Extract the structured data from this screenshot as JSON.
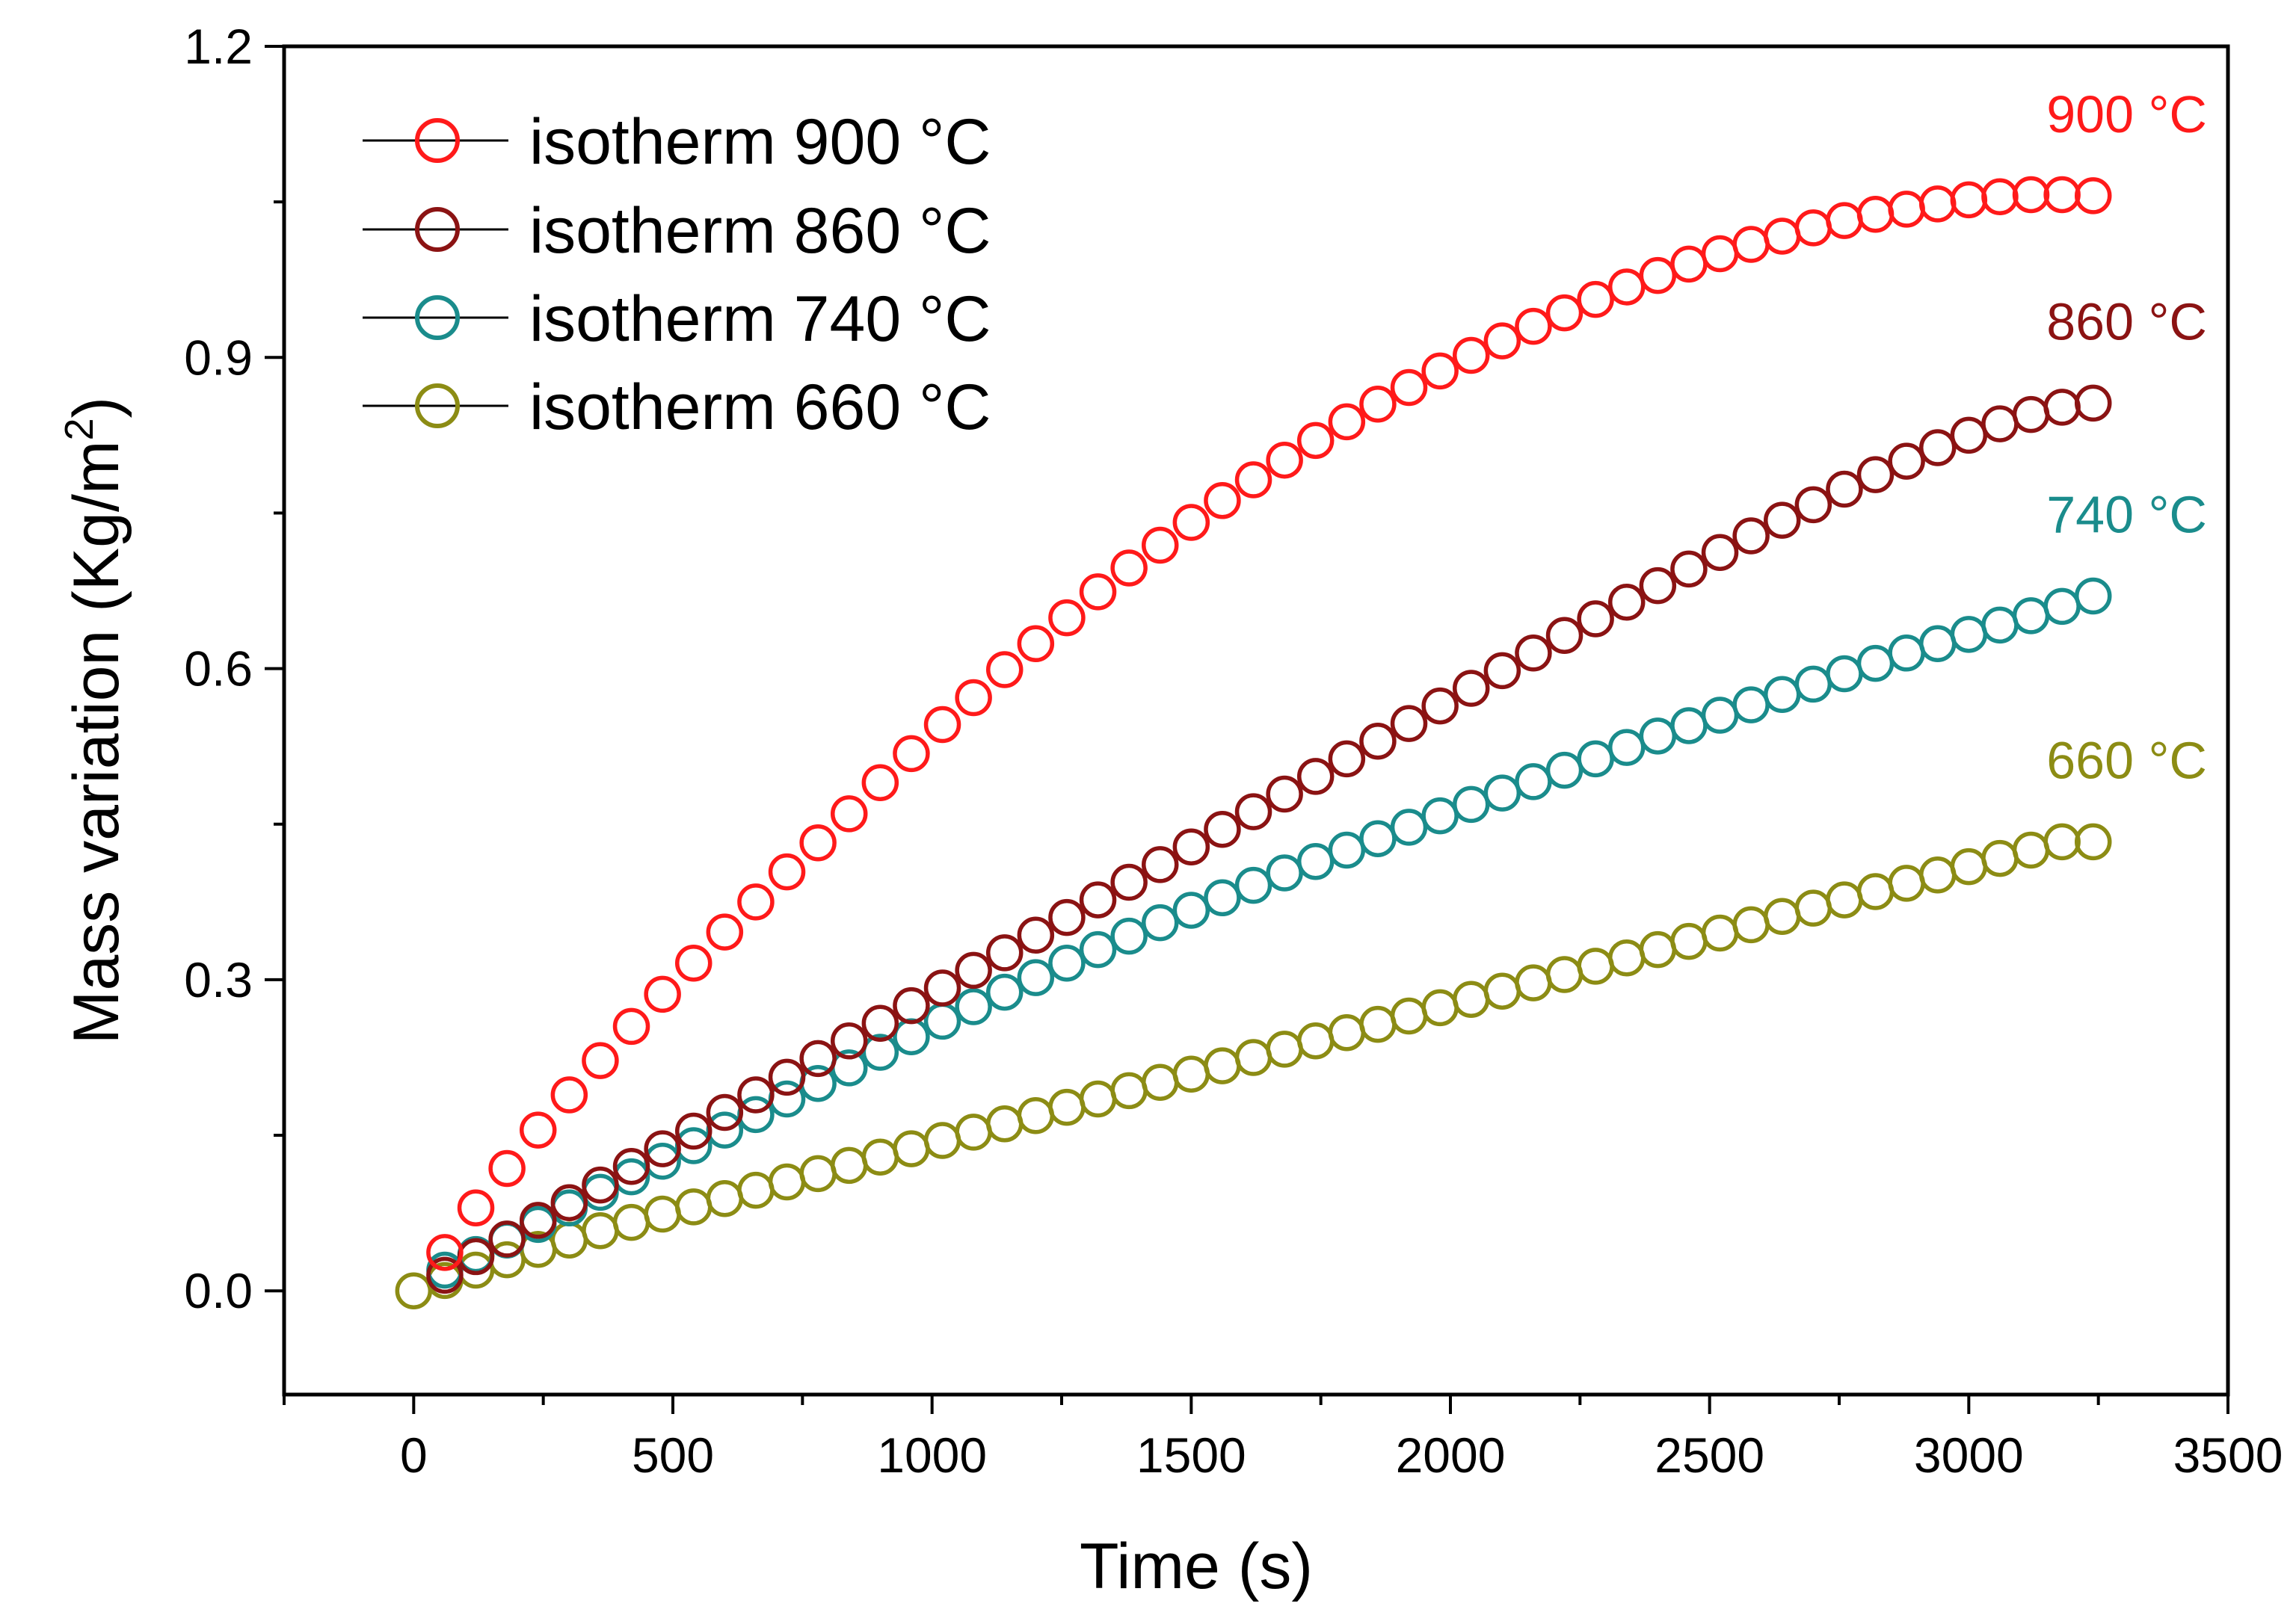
{
  "chart_data": {
    "type": "scatter",
    "title": "",
    "xlabel": "Time (s)",
    "ylabel": "Mass variation (Kg/m",
    "ylabel_superscript": "2",
    "ylabel_close": ")",
    "xlim": [
      -250,
      3500
    ],
    "ylim": [
      -0.1,
      1.2
    ],
    "xticks": [
      0,
      500,
      1000,
      1500,
      2000,
      2500,
      3000,
      3500
    ],
    "xtick_labels": [
      "0",
      "500",
      "1000",
      "1500",
      "2000",
      "2500",
      "3000",
      "3500"
    ],
    "yticks": [
      0.0,
      0.3,
      0.6,
      0.9,
      1.2
    ],
    "ytick_labels": [
      "0.0",
      "0.3",
      "0.6",
      "0.9",
      "1.2"
    ],
    "grid": false,
    "legend_position": "top-left",
    "marker": "open-circle",
    "series": [
      {
        "name": "isotherm 900 °C",
        "end_label": "900 °C",
        "color": "#ff1a1a",
        "x": [
          60,
          120,
          180,
          240,
          300,
          360,
          420,
          480,
          540,
          600,
          660,
          720,
          780,
          840,
          900,
          960,
          1020,
          1080,
          1140,
          1200,
          1260,
          1320,
          1380,
          1440,
          1500,
          1560,
          1620,
          1680,
          1740,
          1800,
          1860,
          1920,
          1980,
          2040,
          2100,
          2160,
          2220,
          2280,
          2340,
          2400,
          2460,
          2520,
          2580,
          2640,
          2700,
          2760,
          2820,
          2880,
          2940,
          3000,
          3060,
          3120,
          3180,
          3240
        ],
        "y": [
          0.037,
          0.08,
          0.118,
          0.155,
          0.189,
          0.222,
          0.255,
          0.286,
          0.316,
          0.346,
          0.375,
          0.404,
          0.432,
          0.46,
          0.49,
          0.518,
          0.546,
          0.572,
          0.599,
          0.624,
          0.649,
          0.674,
          0.697,
          0.719,
          0.741,
          0.762,
          0.782,
          0.801,
          0.82,
          0.838,
          0.855,
          0.871,
          0.887,
          0.902,
          0.916,
          0.93,
          0.943,
          0.956,
          0.968,
          0.979,
          0.99,
          1.0,
          1.009,
          1.017,
          1.025,
          1.032,
          1.038,
          1.043,
          1.048,
          1.052,
          1.055,
          1.057,
          1.057,
          1.056
        ]
      },
      {
        "name": "isotherm 860 °C",
        "end_label": "860 °C",
        "color": "#8b1313",
        "x": [
          60,
          120,
          180,
          240,
          300,
          360,
          420,
          480,
          540,
          600,
          660,
          720,
          780,
          840,
          900,
          960,
          1020,
          1080,
          1140,
          1200,
          1260,
          1320,
          1380,
          1440,
          1500,
          1560,
          1620,
          1680,
          1740,
          1800,
          1860,
          1920,
          1980,
          2040,
          2100,
          2160,
          2220,
          2280,
          2340,
          2400,
          2460,
          2520,
          2580,
          2640,
          2700,
          2760,
          2820,
          2880,
          2940,
          3000,
          3060,
          3120,
          3180,
          3240
        ],
        "y": [
          0.015,
          0.033,
          0.05,
          0.068,
          0.085,
          0.102,
          0.12,
          0.137,
          0.154,
          0.172,
          0.189,
          0.206,
          0.224,
          0.241,
          0.258,
          0.275,
          0.292,
          0.309,
          0.326,
          0.343,
          0.36,
          0.377,
          0.394,
          0.411,
          0.428,
          0.445,
          0.462,
          0.479,
          0.496,
          0.513,
          0.53,
          0.547,
          0.564,
          0.581,
          0.598,
          0.615,
          0.632,
          0.648,
          0.664,
          0.68,
          0.696,
          0.712,
          0.728,
          0.743,
          0.758,
          0.773,
          0.787,
          0.8,
          0.813,
          0.825,
          0.836,
          0.845,
          0.852,
          0.856
        ]
      },
      {
        "name": "isotherm 740 °C",
        "end_label": "740 °C",
        "color": "#1a8c8c",
        "x": [
          60,
          120,
          180,
          240,
          300,
          360,
          420,
          480,
          540,
          600,
          660,
          720,
          780,
          840,
          900,
          960,
          1020,
          1080,
          1140,
          1200,
          1260,
          1320,
          1380,
          1440,
          1500,
          1560,
          1620,
          1680,
          1740,
          1800,
          1860,
          1920,
          1980,
          2040,
          2100,
          2160,
          2220,
          2280,
          2340,
          2400,
          2460,
          2520,
          2580,
          2640,
          2700,
          2760,
          2820,
          2880,
          2940,
          3000,
          3060,
          3120,
          3180,
          3240
        ],
        "y": [
          0.02,
          0.035,
          0.049,
          0.064,
          0.08,
          0.095,
          0.11,
          0.125,
          0.14,
          0.155,
          0.17,
          0.185,
          0.2,
          0.215,
          0.23,
          0.245,
          0.26,
          0.274,
          0.288,
          0.302,
          0.316,
          0.329,
          0.342,
          0.355,
          0.367,
          0.379,
          0.391,
          0.403,
          0.414,
          0.425,
          0.436,
          0.447,
          0.458,
          0.469,
          0.48,
          0.491,
          0.502,
          0.513,
          0.524,
          0.535,
          0.545,
          0.555,
          0.565,
          0.575,
          0.585,
          0.595,
          0.605,
          0.615,
          0.624,
          0.633,
          0.642,
          0.651,
          0.66,
          0.67
        ]
      },
      {
        "name": "isotherm 660 °C",
        "end_label": "660 °C",
        "color": "#8c8c14",
        "x": [
          0,
          60,
          120,
          180,
          240,
          300,
          360,
          420,
          480,
          540,
          600,
          660,
          720,
          780,
          840,
          900,
          960,
          1020,
          1080,
          1140,
          1200,
          1260,
          1320,
          1380,
          1440,
          1500,
          1560,
          1620,
          1680,
          1740,
          1800,
          1860,
          1920,
          1980,
          2040,
          2100,
          2160,
          2220,
          2280,
          2340,
          2400,
          2460,
          2520,
          2580,
          2640,
          2700,
          2760,
          2820,
          2880,
          2940,
          3000,
          3060,
          3120,
          3180,
          3240
        ],
        "y": [
          0.0,
          0.01,
          0.02,
          0.03,
          0.04,
          0.049,
          0.058,
          0.066,
          0.074,
          0.081,
          0.089,
          0.097,
          0.105,
          0.113,
          0.121,
          0.129,
          0.137,
          0.145,
          0.153,
          0.161,
          0.169,
          0.177,
          0.185,
          0.193,
          0.201,
          0.209,
          0.217,
          0.225,
          0.233,
          0.241,
          0.249,
          0.257,
          0.265,
          0.273,
          0.281,
          0.289,
          0.297,
          0.305,
          0.313,
          0.321,
          0.329,
          0.337,
          0.345,
          0.353,
          0.361,
          0.369,
          0.377,
          0.385,
          0.393,
          0.401,
          0.409,
          0.417,
          0.425,
          0.433,
          0.433
        ]
      }
    ]
  }
}
